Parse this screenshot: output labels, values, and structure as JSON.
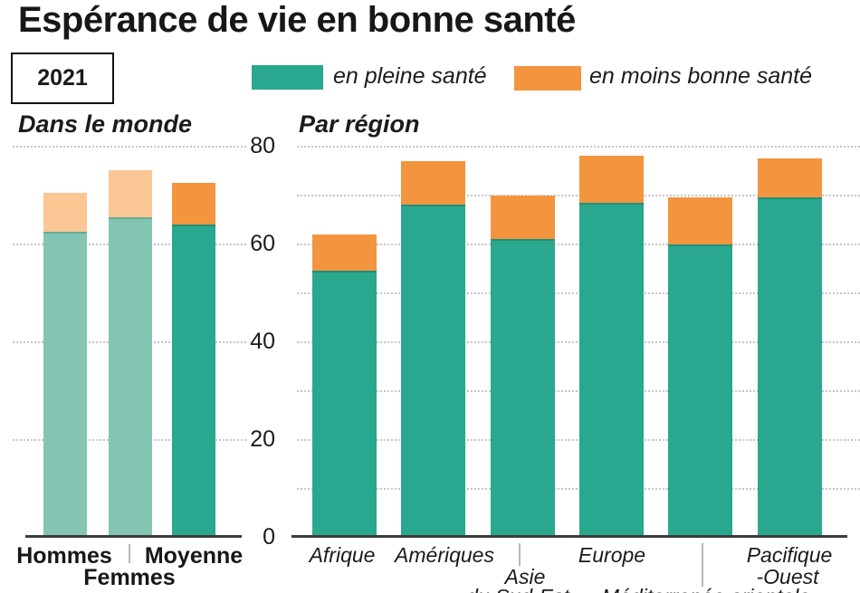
{
  "title": "Espérance de vie en bonne santé",
  "year_badge": "2021",
  "legend": {
    "full_health": "en pleine santé",
    "less_health": "en moins bonne santé"
  },
  "colors": {
    "teal": "#2aa78f",
    "teal_muted": "#83c4b2",
    "orange": "#f2953e",
    "orange_muted": "#fac795",
    "axis": "#3c3c3c",
    "grid": "#c6c6c6",
    "separator": "#b8b8b8",
    "text": "#1a1a1a"
  },
  "y_axis": {
    "tick_labels": [
      "80",
      "60",
      "40",
      "20",
      "0"
    ],
    "tick_values": [
      80,
      60,
      40,
      20,
      0
    ]
  },
  "chart_data": [
    {
      "type": "bar",
      "stacked": true,
      "title": "Dans le monde",
      "categories": [
        "Hommes",
        "Femmes",
        "Moyenne"
      ],
      "series": [
        {
          "name": "en pleine santé",
          "values": [
            62,
            65,
            63.5
          ]
        },
        {
          "name": "en moins bonne santé",
          "values": [
            8,
            9.5,
            8.5
          ]
        }
      ],
      "totals": [
        70,
        74.5,
        72
      ],
      "muted_categories": [
        "Hommes",
        "Femmes"
      ],
      "ylim": [
        0,
        80
      ],
      "gridlines": [
        20,
        40,
        60,
        80
      ],
      "grid": "dotted",
      "legend_position": "top"
    },
    {
      "type": "bar",
      "stacked": true,
      "title": "Par région",
      "categories": [
        "Afrique",
        "Amériques",
        "Asie du Sud-Est",
        "Europe",
        "Méditerranée orientale",
        "Pacifique-Ouest"
      ],
      "series": [
        {
          "name": "en pleine santé",
          "values": [
            54,
            67.5,
            60.5,
            68,
            59.5,
            69
          ]
        },
        {
          "name": "en moins bonne santé",
          "values": [
            7.5,
            9,
            9,
            9.5,
            9.5,
            8
          ]
        }
      ],
      "totals": [
        61.5,
        76.5,
        69.5,
        77.5,
        69,
        77
      ],
      "muted_categories": [],
      "ylim": [
        0,
        80
      ],
      "gridlines": [
        10,
        20,
        30,
        40,
        50,
        60,
        70,
        80
      ],
      "grid": "dotted",
      "legend_position": "top"
    }
  ],
  "world_labels": {
    "hommes": "Hommes",
    "femmes": "Femmes",
    "moyenne": "Moyenne"
  },
  "region_labels": {
    "afrique": "Afrique",
    "ameriques": "Amériques",
    "asie": "Asie",
    "asie_suite": "du Sud-Est",
    "europe": "Europe",
    "mediterranee": "Méditerranée orientale",
    "pacifique": "Pacifique",
    "ouest": "-Ouest"
  }
}
